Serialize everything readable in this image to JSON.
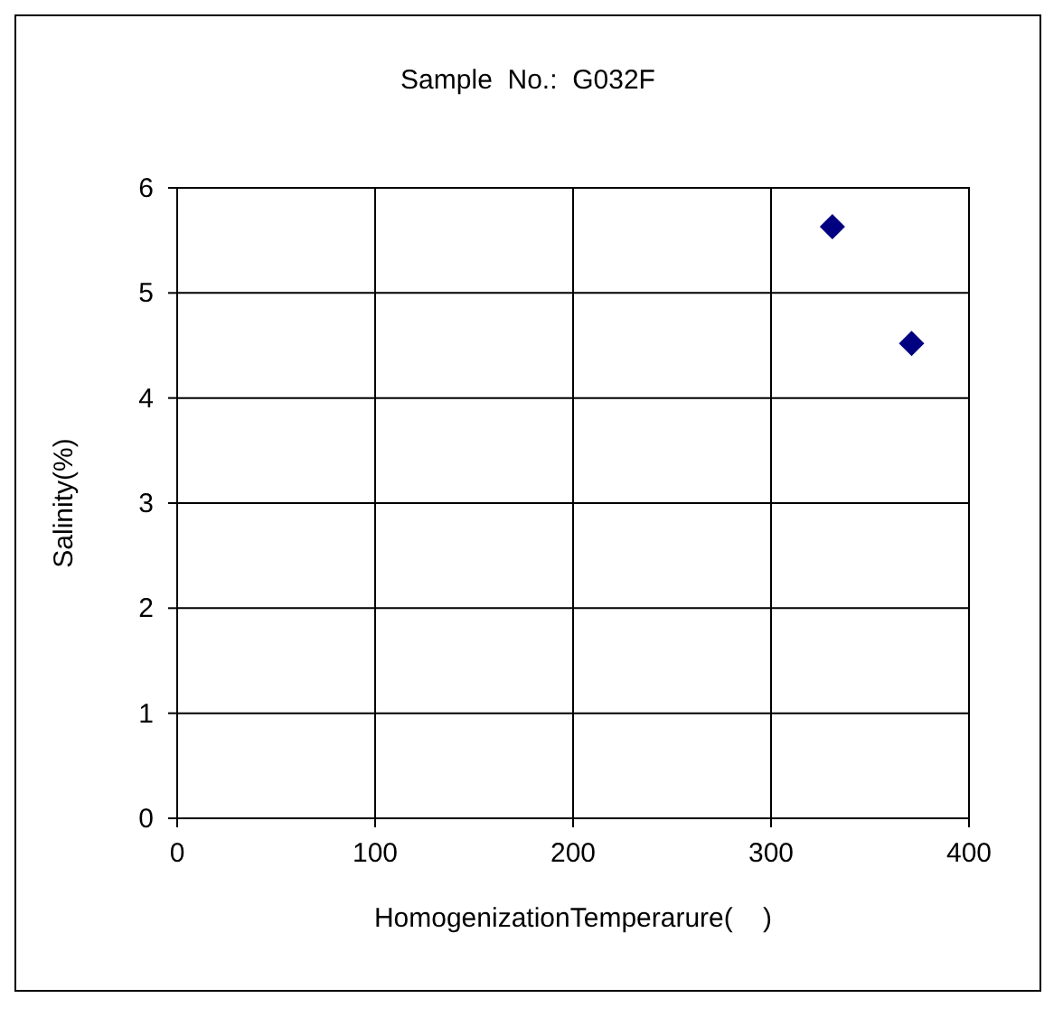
{
  "chart_data": {
    "type": "scatter",
    "title": "Sample  No.:  G032F",
    "xlabel": "HomogenizationTemperarure(    )",
    "ylabel": "Salinity(%)",
    "x": [
      331,
      371
    ],
    "series": [
      {
        "color": "#000080",
        "values": [
          5.63,
          4.52
        ]
      }
    ],
    "xlim": [
      0,
      400
    ],
    "xticks": [
      0,
      100,
      200,
      300,
      400
    ],
    "ylim": [
      0,
      6
    ],
    "yticks": [
      0,
      1,
      2,
      3,
      4,
      5,
      6
    ],
    "grid": true,
    "marker": "diamond"
  }
}
